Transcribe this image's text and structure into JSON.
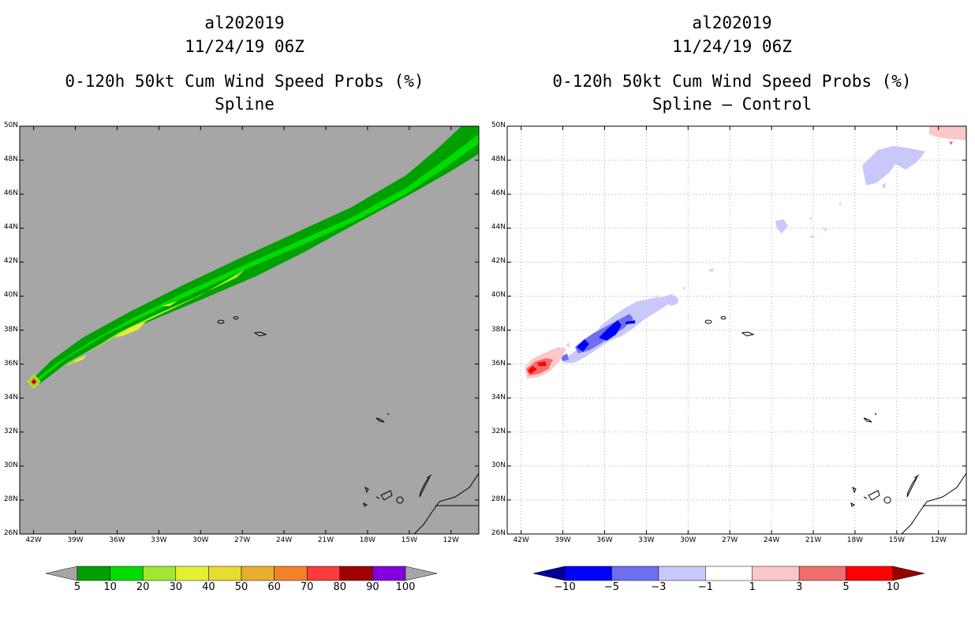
{
  "left_panel": {
    "storm_id": "al202019",
    "datetime": "11/24/19 06Z",
    "product": "0-120h 50kt Cum Wind Speed Probs (%)",
    "subtitle": "Spline",
    "background_color": "#a6a6a6"
  },
  "right_panel": {
    "storm_id": "al202019",
    "datetime": "11/24/19 06Z",
    "product": "0-120h 50kt Cum Wind Speed Probs (%)",
    "subtitle": "Spline – Control",
    "background_color": "#ffffff"
  },
  "map": {
    "lon_range": [
      -43,
      -10
    ],
    "lat_range": [
      26,
      50
    ],
    "lat_ticks": [
      "50N",
      "48N",
      "46N",
      "44N",
      "42N",
      "40N",
      "38N",
      "36N",
      "34N",
      "32N",
      "30N",
      "28N",
      "26N"
    ],
    "lon_ticks": [
      "42W",
      "39W",
      "36W",
      "33W",
      "30W",
      "27W",
      "24W",
      "21W",
      "18W",
      "15W",
      "12W"
    ]
  },
  "left_colorbar": {
    "labels": [
      "5",
      "10",
      "20",
      "30",
      "40",
      "50",
      "60",
      "70",
      "80",
      "90",
      "100"
    ],
    "colors": [
      "#a6a6a6",
      "#00a000",
      "#00dc00",
      "#a0e632",
      "#e6f032",
      "#e6dc32",
      "#e6af2d",
      "#f08228",
      "#fa3c3c",
      "#a00000",
      "#8200dc",
      "#a6a6a6"
    ]
  },
  "right_colorbar": {
    "labels": [
      "−10",
      "−5",
      "−3",
      "−1",
      "1",
      "3",
      "5",
      "10"
    ],
    "colors": [
      "#000096",
      "#0000ff",
      "#6e6ef0",
      "#c8c8fa",
      "#ffffff",
      "#fac8c8",
      "#f06e6e",
      "#ff0000",
      "#960000"
    ]
  }
}
